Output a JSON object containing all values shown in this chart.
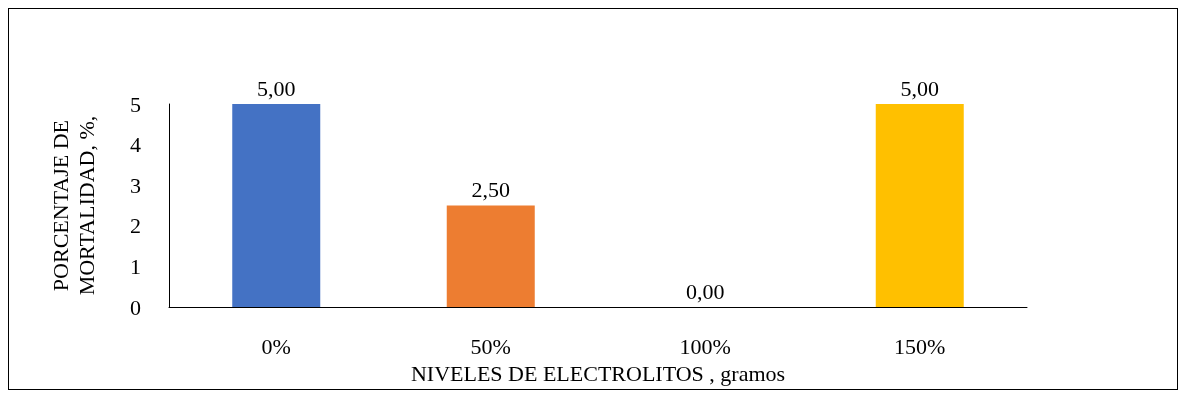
{
  "chart_data": {
    "type": "bar",
    "xlabel": "NIVELES DE ELECTROLITOS , gramos",
    "ylabel": "PORCENTAJE DE\nMORTALIDAD, %,",
    "categories": [
      "0%",
      "50%",
      "100%",
      "150%"
    ],
    "values": [
      5,
      2.5,
      0,
      5
    ],
    "colors": [
      "#4472c4",
      "#ed7d31",
      "#808080",
      "#ffc000"
    ],
    "value_labels": [
      "5,00",
      "2,50",
      "0,00",
      "5,00"
    ],
    "ylim": [
      0,
      5
    ],
    "yticks": [
      0,
      1,
      2,
      3,
      4,
      5
    ],
    "grid": false
  }
}
